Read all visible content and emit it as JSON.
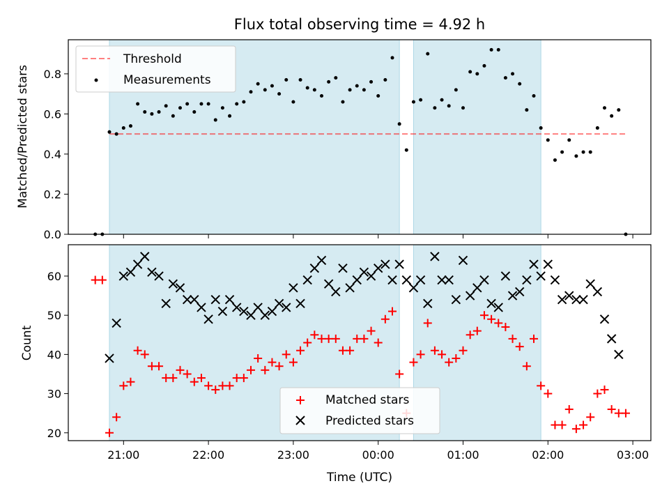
{
  "title": "Flux total observing time = 4.92 h",
  "colors": {
    "shade": "#add8e6",
    "threshold": "#ff0000",
    "matched": "#ff0000",
    "predicted": "#000000",
    "measurement": "#000000"
  },
  "chart_data": [
    {
      "type": "scatter",
      "panel": "top",
      "ylabel": "Matched/Predicted stars",
      "ylim": [
        0,
        0.97
      ],
      "yticks": [
        "0.0",
        "0.2",
        "0.4",
        "0.6",
        "0.8"
      ],
      "legend_position": "upper-left",
      "legend": [
        "Threshold",
        "Measurements"
      ],
      "threshold": {
        "name": "Threshold",
        "value": 0.5,
        "from": "20:50",
        "to": "02:55"
      },
      "observing_intervals": [
        [
          "20:50",
          "00:15"
        ],
        [
          "00:25",
          "01:55"
        ]
      ],
      "series": [
        {
          "name": "Measurements",
          "points": [
            [
              "20:40",
              0.0
            ],
            [
              "20:45",
              0.0
            ],
            [
              "20:50",
              0.51
            ],
            [
              "20:55",
              0.5
            ],
            [
              "21:00",
              0.53
            ],
            [
              "21:05",
              0.54
            ],
            [
              "21:10",
              0.65
            ],
            [
              "21:15",
              0.61
            ],
            [
              "21:20",
              0.6
            ],
            [
              "21:25",
              0.61
            ],
            [
              "21:30",
              0.64
            ],
            [
              "21:35",
              0.59
            ],
            [
              "21:40",
              0.63
            ],
            [
              "21:45",
              0.65
            ],
            [
              "21:50",
              0.61
            ],
            [
              "21:55",
              0.65
            ],
            [
              "22:00",
              0.65
            ],
            [
              "22:05",
              0.57
            ],
            [
              "22:10",
              0.63
            ],
            [
              "22:15",
              0.59
            ],
            [
              "22:20",
              0.65
            ],
            [
              "22:25",
              0.66
            ],
            [
              "22:30",
              0.71
            ],
            [
              "22:35",
              0.75
            ],
            [
              "22:40",
              0.72
            ],
            [
              "22:45",
              0.74
            ],
            [
              "22:50",
              0.7
            ],
            [
              "22:55",
              0.77
            ],
            [
              "23:00",
              0.66
            ],
            [
              "23:05",
              0.77
            ],
            [
              "23:10",
              0.73
            ],
            [
              "23:15",
              0.72
            ],
            [
              "23:20",
              0.69
            ],
            [
              "23:25",
              0.76
            ],
            [
              "23:30",
              0.78
            ],
            [
              "23:35",
              0.66
            ],
            [
              "23:40",
              0.72
            ],
            [
              "23:45",
              0.74
            ],
            [
              "23:50",
              0.72
            ],
            [
              "23:55",
              0.76
            ],
            [
              "00:00",
              0.69
            ],
            [
              "00:05",
              0.77
            ],
            [
              "00:10",
              0.88
            ],
            [
              "00:15",
              0.55
            ],
            [
              "00:20",
              0.42
            ],
            [
              "00:25",
              0.66
            ],
            [
              "00:30",
              0.67
            ],
            [
              "00:35",
              0.9
            ],
            [
              "00:40",
              0.63
            ],
            [
              "00:45",
              0.67
            ],
            [
              "00:50",
              0.64
            ],
            [
              "00:55",
              0.72
            ],
            [
              "01:00",
              0.63
            ],
            [
              "01:05",
              0.81
            ],
            [
              "01:10",
              0.8
            ],
            [
              "01:15",
              0.84
            ],
            [
              "01:20",
              0.92
            ],
            [
              "01:25",
              0.92
            ],
            [
              "01:30",
              0.78
            ],
            [
              "01:35",
              0.8
            ],
            [
              "01:40",
              0.75
            ],
            [
              "01:45",
              0.62
            ],
            [
              "01:50",
              0.69
            ],
            [
              "01:55",
              0.53
            ],
            [
              "02:00",
              0.47
            ],
            [
              "02:05",
              0.37
            ],
            [
              "02:10",
              0.41
            ],
            [
              "02:15",
              0.47
            ],
            [
              "02:20",
              0.39
            ],
            [
              "02:25",
              0.41
            ],
            [
              "02:30",
              0.41
            ],
            [
              "02:35",
              0.53
            ],
            [
              "02:40",
              0.63
            ],
            [
              "02:45",
              0.59
            ],
            [
              "02:50",
              0.62
            ],
            [
              "02:55",
              0.0
            ]
          ]
        }
      ]
    },
    {
      "type": "scatter",
      "panel": "bottom",
      "xlabel": "Time (UTC)",
      "ylabel": "Count",
      "ylim": [
        18,
        68
      ],
      "yticks": [
        "20",
        "30",
        "40",
        "50",
        "60"
      ],
      "xticks": [
        "21:00",
        "22:00",
        "23:00",
        "00:00",
        "01:00",
        "02:00",
        "03:00"
      ],
      "legend_position": "lower-center",
      "legend": [
        "Matched stars",
        "Predicted stars"
      ],
      "observing_intervals": [
        [
          "20:50",
          "00:15"
        ],
        [
          "00:25",
          "01:55"
        ]
      ],
      "series": [
        {
          "name": "Matched stars",
          "marker": "plus",
          "points": [
            [
              "20:40",
              59
            ],
            [
              "20:45",
              59
            ],
            [
              "20:50",
              20
            ],
            [
              "20:55",
              24
            ],
            [
              "21:00",
              32
            ],
            [
              "21:05",
              33
            ],
            [
              "21:10",
              41
            ],
            [
              "21:15",
              40
            ],
            [
              "21:20",
              37
            ],
            [
              "21:25",
              37
            ],
            [
              "21:30",
              34
            ],
            [
              "21:35",
              34
            ],
            [
              "21:40",
              36
            ],
            [
              "21:45",
              35
            ],
            [
              "21:50",
              33
            ],
            [
              "21:55",
              34
            ],
            [
              "22:00",
              32
            ],
            [
              "22:05",
              31
            ],
            [
              "22:10",
              32
            ],
            [
              "22:15",
              32
            ],
            [
              "22:20",
              34
            ],
            [
              "22:25",
              34
            ],
            [
              "22:30",
              36
            ],
            [
              "22:35",
              39
            ],
            [
              "22:40",
              36
            ],
            [
              "22:45",
              38
            ],
            [
              "22:50",
              37
            ],
            [
              "22:55",
              40
            ],
            [
              "23:00",
              38
            ],
            [
              "23:05",
              41
            ],
            [
              "23:10",
              43
            ],
            [
              "23:15",
              45
            ],
            [
              "23:20",
              44
            ],
            [
              "23:25",
              44
            ],
            [
              "23:30",
              44
            ],
            [
              "23:35",
              41
            ],
            [
              "23:40",
              41
            ],
            [
              "23:45",
              44
            ],
            [
              "23:50",
              44
            ],
            [
              "23:55",
              46
            ],
            [
              "00:00",
              43
            ],
            [
              "00:05",
              49
            ],
            [
              "00:10",
              51
            ],
            [
              "00:15",
              35
            ],
            [
              "00:20",
              25
            ],
            [
              "00:25",
              38
            ],
            [
              "00:30",
              40
            ],
            [
              "00:35",
              48
            ],
            [
              "00:40",
              41
            ],
            [
              "00:45",
              40
            ],
            [
              "00:50",
              38
            ],
            [
              "00:55",
              39
            ],
            [
              "01:00",
              41
            ],
            [
              "01:05",
              45
            ],
            [
              "01:10",
              46
            ],
            [
              "01:15",
              50
            ],
            [
              "01:20",
              49
            ],
            [
              "01:25",
              48
            ],
            [
              "01:30",
              47
            ],
            [
              "01:35",
              44
            ],
            [
              "01:40",
              42
            ],
            [
              "01:45",
              37
            ],
            [
              "01:50",
              44
            ],
            [
              "01:55",
              32
            ],
            [
              "02:00",
              30
            ],
            [
              "02:05",
              22
            ],
            [
              "02:10",
              22
            ],
            [
              "02:15",
              26
            ],
            [
              "02:20",
              21
            ],
            [
              "02:25",
              22
            ],
            [
              "02:30",
              24
            ],
            [
              "02:35",
              30
            ],
            [
              "02:40",
              31
            ],
            [
              "02:45",
              26
            ],
            [
              "02:50",
              25
            ],
            [
              "02:55",
              25
            ]
          ]
        },
        {
          "name": "Predicted stars",
          "marker": "x",
          "points": [
            [
              "20:50",
              39
            ],
            [
              "20:55",
              48
            ],
            [
              "21:00",
              60
            ],
            [
              "21:05",
              61
            ],
            [
              "21:10",
              63
            ],
            [
              "21:15",
              65
            ],
            [
              "21:20",
              61
            ],
            [
              "21:25",
              60
            ],
            [
              "21:30",
              53
            ],
            [
              "21:35",
              58
            ],
            [
              "21:40",
              57
            ],
            [
              "21:45",
              54
            ],
            [
              "21:50",
              54
            ],
            [
              "21:55",
              52
            ],
            [
              "22:00",
              49
            ],
            [
              "22:05",
              54
            ],
            [
              "22:10",
              51
            ],
            [
              "22:15",
              54
            ],
            [
              "22:20",
              52
            ],
            [
              "22:25",
              51
            ],
            [
              "22:30",
              50
            ],
            [
              "22:35",
              52
            ],
            [
              "22:40",
              50
            ],
            [
              "22:45",
              51
            ],
            [
              "22:50",
              53
            ],
            [
              "22:55",
              52
            ],
            [
              "23:00",
              57
            ],
            [
              "23:05",
              53
            ],
            [
              "23:10",
              59
            ],
            [
              "23:15",
              62
            ],
            [
              "23:20",
              64
            ],
            [
              "23:25",
              58
            ],
            [
              "23:30",
              56
            ],
            [
              "23:35",
              62
            ],
            [
              "23:40",
              57
            ],
            [
              "23:45",
              59
            ],
            [
              "23:50",
              61
            ],
            [
              "23:55",
              60
            ],
            [
              "00:00",
              62
            ],
            [
              "00:05",
              63
            ],
            [
              "00:10",
              59
            ],
            [
              "00:15",
              63
            ],
            [
              "00:20",
              59
            ],
            [
              "00:25",
              57
            ],
            [
              "00:30",
              59
            ],
            [
              "00:35",
              53
            ],
            [
              "00:40",
              65
            ],
            [
              "00:45",
              59
            ],
            [
              "00:50",
              59
            ],
            [
              "00:55",
              54
            ],
            [
              "01:00",
              64
            ],
            [
              "01:05",
              55
            ],
            [
              "01:10",
              57
            ],
            [
              "01:15",
              59
            ],
            [
              "01:20",
              53
            ],
            [
              "01:25",
              52
            ],
            [
              "01:30",
              60
            ],
            [
              "01:35",
              55
            ],
            [
              "01:40",
              56
            ],
            [
              "01:45",
              59
            ],
            [
              "01:50",
              63
            ],
            [
              "01:55",
              60
            ],
            [
              "02:00",
              63
            ],
            [
              "02:05",
              59
            ],
            [
              "02:10",
              54
            ],
            [
              "02:15",
              55
            ],
            [
              "02:20",
              54
            ],
            [
              "02:25",
              54
            ],
            [
              "02:30",
              58
            ],
            [
              "02:35",
              56
            ],
            [
              "02:40",
              49
            ],
            [
              "02:45",
              44
            ],
            [
              "02:50",
              40
            ]
          ]
        }
      ]
    }
  ]
}
